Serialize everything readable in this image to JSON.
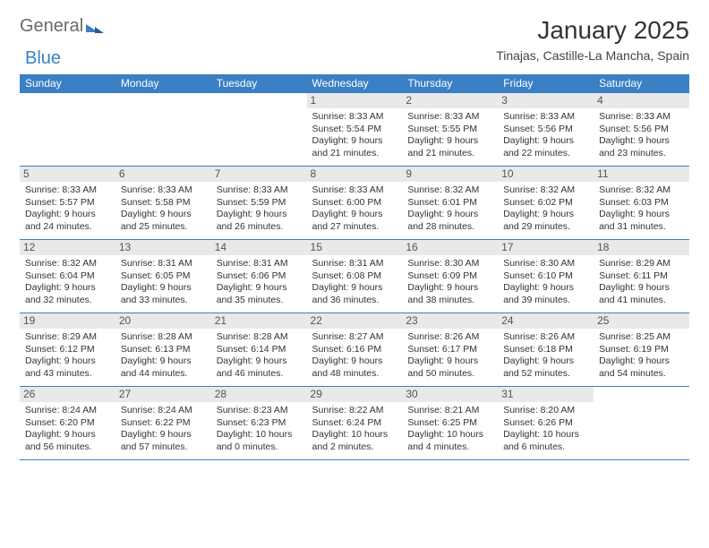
{
  "brand": {
    "part1": "General",
    "part2": "Blue"
  },
  "title": "January 2025",
  "subtitle": "Tinajas, Castille-La Mancha, Spain",
  "colors": {
    "header_bg": "#3b7fc4",
    "header_text": "#ffffff",
    "daynum_bg": "#e9e9e9",
    "text": "#333333",
    "row_border": "#3b7fc4"
  },
  "typography": {
    "title_fontsize": 28,
    "subtitle_fontsize": 14,
    "weekday_fontsize": 12,
    "body_fontsize": 10.5
  },
  "weekdays": [
    "Sunday",
    "Monday",
    "Tuesday",
    "Wednesday",
    "Thursday",
    "Friday",
    "Saturday"
  ],
  "weeks": [
    [
      null,
      null,
      null,
      {
        "day": "1",
        "sunrise": "8:33 AM",
        "sunset": "5:54 PM",
        "daylight_hours": "9",
        "daylight_minutes": "21"
      },
      {
        "day": "2",
        "sunrise": "8:33 AM",
        "sunset": "5:55 PM",
        "daylight_hours": "9",
        "daylight_minutes": "21"
      },
      {
        "day": "3",
        "sunrise": "8:33 AM",
        "sunset": "5:56 PM",
        "daylight_hours": "9",
        "daylight_minutes": "22"
      },
      {
        "day": "4",
        "sunrise": "8:33 AM",
        "sunset": "5:56 PM",
        "daylight_hours": "9",
        "daylight_minutes": "23"
      }
    ],
    [
      {
        "day": "5",
        "sunrise": "8:33 AM",
        "sunset": "5:57 PM",
        "daylight_hours": "9",
        "daylight_minutes": "24"
      },
      {
        "day": "6",
        "sunrise": "8:33 AM",
        "sunset": "5:58 PM",
        "daylight_hours": "9",
        "daylight_minutes": "25"
      },
      {
        "day": "7",
        "sunrise": "8:33 AM",
        "sunset": "5:59 PM",
        "daylight_hours": "9",
        "daylight_minutes": "26"
      },
      {
        "day": "8",
        "sunrise": "8:33 AM",
        "sunset": "6:00 PM",
        "daylight_hours": "9",
        "daylight_minutes": "27"
      },
      {
        "day": "9",
        "sunrise": "8:32 AM",
        "sunset": "6:01 PM",
        "daylight_hours": "9",
        "daylight_minutes": "28"
      },
      {
        "day": "10",
        "sunrise": "8:32 AM",
        "sunset": "6:02 PM",
        "daylight_hours": "9",
        "daylight_minutes": "29"
      },
      {
        "day": "11",
        "sunrise": "8:32 AM",
        "sunset": "6:03 PM",
        "daylight_hours": "9",
        "daylight_minutes": "31"
      }
    ],
    [
      {
        "day": "12",
        "sunrise": "8:32 AM",
        "sunset": "6:04 PM",
        "daylight_hours": "9",
        "daylight_minutes": "32"
      },
      {
        "day": "13",
        "sunrise": "8:31 AM",
        "sunset": "6:05 PM",
        "daylight_hours": "9",
        "daylight_minutes": "33"
      },
      {
        "day": "14",
        "sunrise": "8:31 AM",
        "sunset": "6:06 PM",
        "daylight_hours": "9",
        "daylight_minutes": "35"
      },
      {
        "day": "15",
        "sunrise": "8:31 AM",
        "sunset": "6:08 PM",
        "daylight_hours": "9",
        "daylight_minutes": "36"
      },
      {
        "day": "16",
        "sunrise": "8:30 AM",
        "sunset": "6:09 PM",
        "daylight_hours": "9",
        "daylight_minutes": "38"
      },
      {
        "day": "17",
        "sunrise": "8:30 AM",
        "sunset": "6:10 PM",
        "daylight_hours": "9",
        "daylight_minutes": "39"
      },
      {
        "day": "18",
        "sunrise": "8:29 AM",
        "sunset": "6:11 PM",
        "daylight_hours": "9",
        "daylight_minutes": "41"
      }
    ],
    [
      {
        "day": "19",
        "sunrise": "8:29 AM",
        "sunset": "6:12 PM",
        "daylight_hours": "9",
        "daylight_minutes": "43"
      },
      {
        "day": "20",
        "sunrise": "8:28 AM",
        "sunset": "6:13 PM",
        "daylight_hours": "9",
        "daylight_minutes": "44"
      },
      {
        "day": "21",
        "sunrise": "8:28 AM",
        "sunset": "6:14 PM",
        "daylight_hours": "9",
        "daylight_minutes": "46"
      },
      {
        "day": "22",
        "sunrise": "8:27 AM",
        "sunset": "6:16 PM",
        "daylight_hours": "9",
        "daylight_minutes": "48"
      },
      {
        "day": "23",
        "sunrise": "8:26 AM",
        "sunset": "6:17 PM",
        "daylight_hours": "9",
        "daylight_minutes": "50"
      },
      {
        "day": "24",
        "sunrise": "8:26 AM",
        "sunset": "6:18 PM",
        "daylight_hours": "9",
        "daylight_minutes": "52"
      },
      {
        "day": "25",
        "sunrise": "8:25 AM",
        "sunset": "6:19 PM",
        "daylight_hours": "9",
        "daylight_minutes": "54"
      }
    ],
    [
      {
        "day": "26",
        "sunrise": "8:24 AM",
        "sunset": "6:20 PM",
        "daylight_hours": "9",
        "daylight_minutes": "56"
      },
      {
        "day": "27",
        "sunrise": "8:24 AM",
        "sunset": "6:22 PM",
        "daylight_hours": "9",
        "daylight_minutes": "57"
      },
      {
        "day": "28",
        "sunrise": "8:23 AM",
        "sunset": "6:23 PM",
        "daylight_hours": "10",
        "daylight_minutes": "0"
      },
      {
        "day": "29",
        "sunrise": "8:22 AM",
        "sunset": "6:24 PM",
        "daylight_hours": "10",
        "daylight_minutes": "2"
      },
      {
        "day": "30",
        "sunrise": "8:21 AM",
        "sunset": "6:25 PM",
        "daylight_hours": "10",
        "daylight_minutes": "4"
      },
      {
        "day": "31",
        "sunrise": "8:20 AM",
        "sunset": "6:26 PM",
        "daylight_hours": "10",
        "daylight_minutes": "6"
      },
      null
    ]
  ],
  "labels": {
    "sunrise": "Sunrise:",
    "sunset": "Sunset:",
    "daylight_prefix": "Daylight:",
    "hours_word": "hours",
    "and_word": "and",
    "minutes_word": "minutes."
  }
}
